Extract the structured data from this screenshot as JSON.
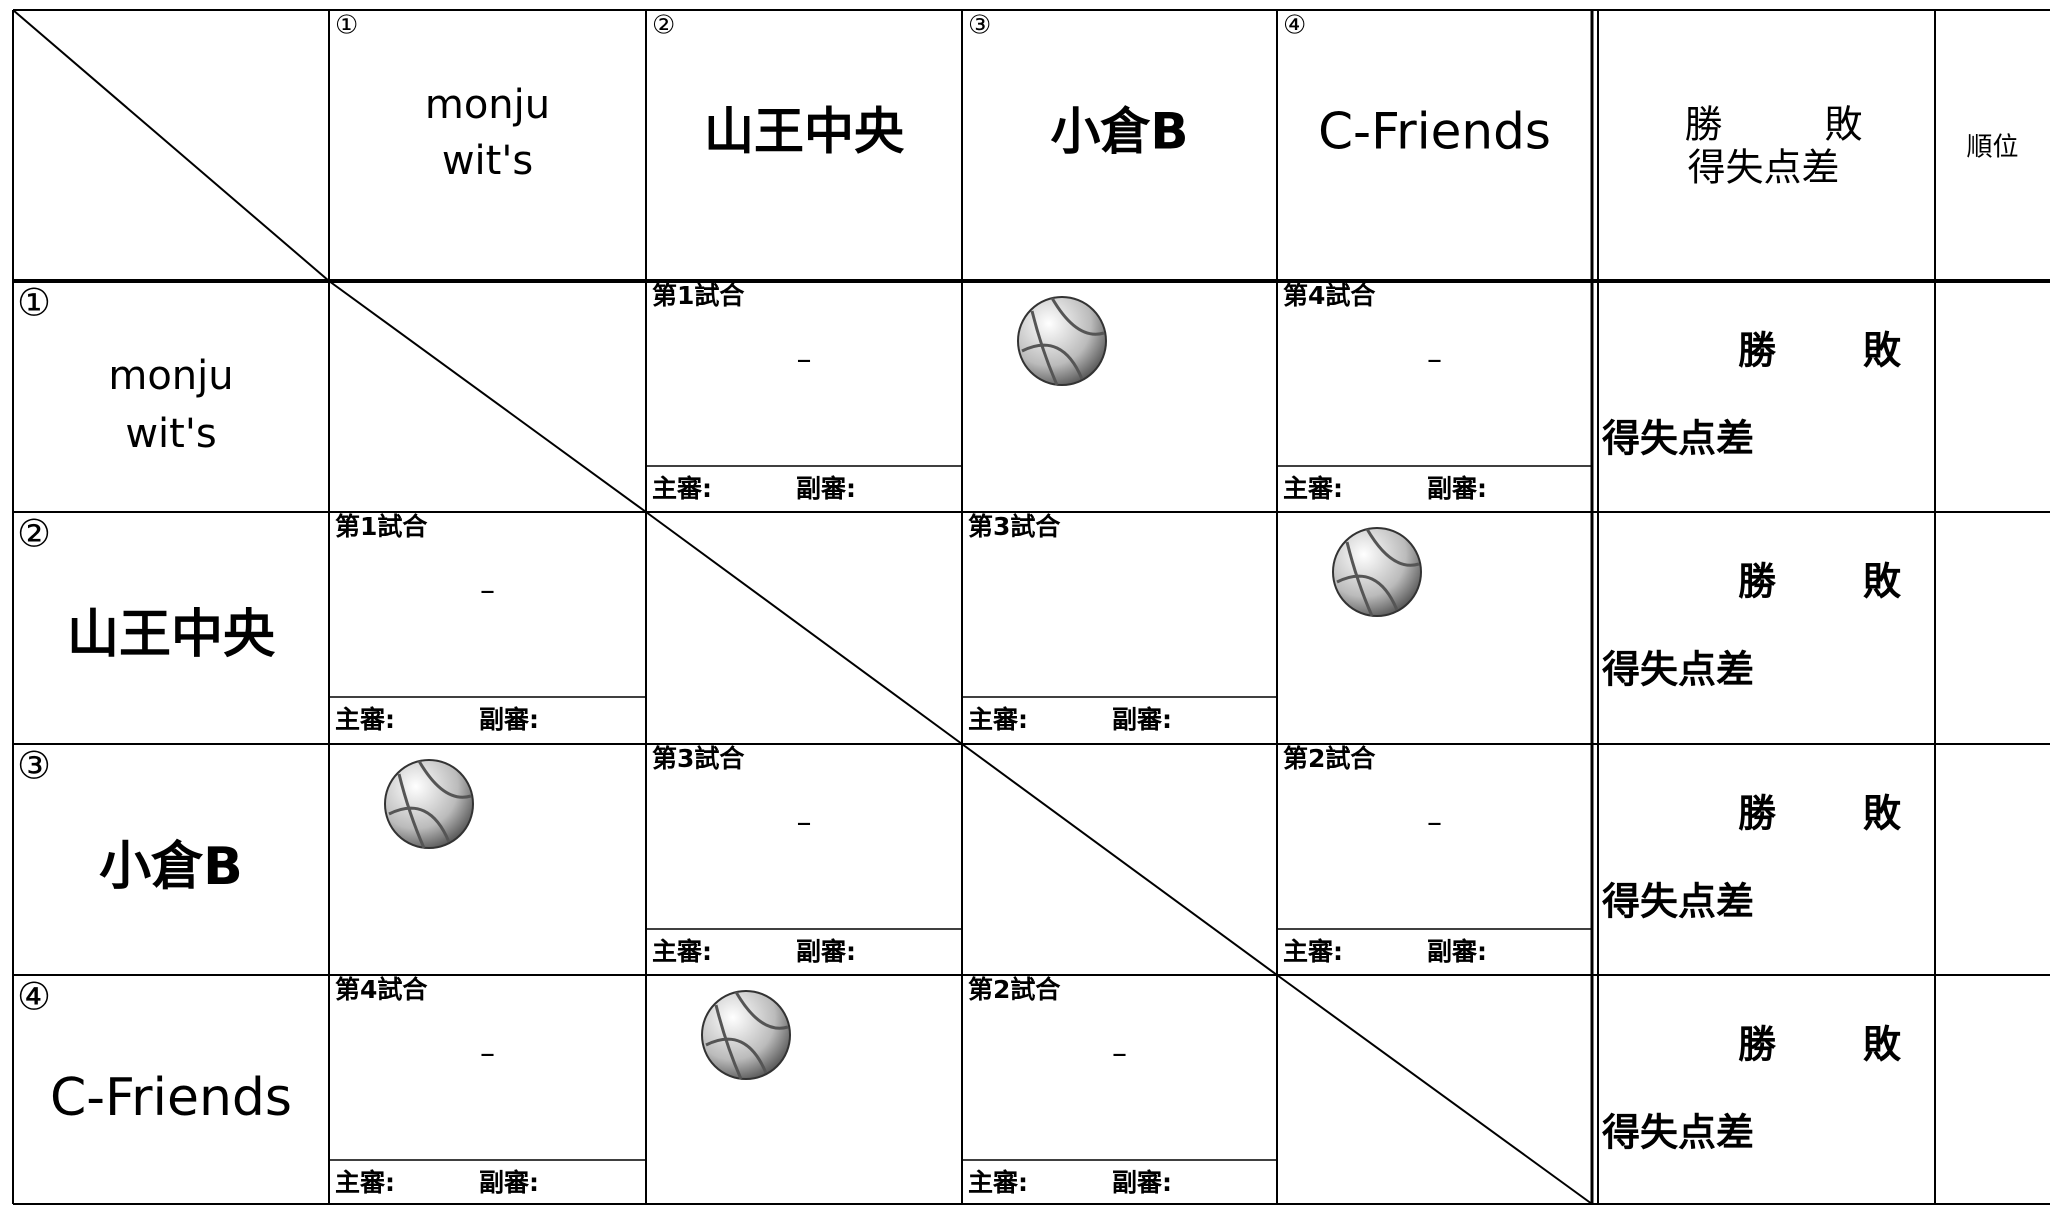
{
  "header": {
    "columns": [
      {
        "number": "①",
        "name": [
          "monju",
          "wit's"
        ]
      },
      {
        "number": "②",
        "name": [
          "山王中央"
        ]
      },
      {
        "number": "③",
        "name": [
          "小倉B"
        ]
      },
      {
        "number": "④",
        "name": [
          "C-Friends"
        ]
      }
    ],
    "result": {
      "win": "勝",
      "loss": "敗",
      "diff": "得失点差"
    },
    "rank": "順位"
  },
  "rows": [
    {
      "number": "①",
      "name": [
        "monju",
        "wit's"
      ],
      "cells": [
        {
          "type": "diagonal"
        },
        {
          "type": "match",
          "match": "第1試合",
          "score": "–",
          "referee": "主審:",
          "assistant": "副審:"
        },
        {
          "type": "ball"
        },
        {
          "type": "match",
          "match": "第4試合",
          "score": "–",
          "referee": "主審:",
          "assistant": "副審:"
        }
      ],
      "result": {
        "win": "勝",
        "loss": "敗",
        "diff": "得失点差"
      }
    },
    {
      "number": "②",
      "name": [
        "山王中央"
      ],
      "cells": [
        {
          "type": "match",
          "match": "第1試合",
          "score": "–",
          "referee": "主審:",
          "assistant": "副審:"
        },
        {
          "type": "diagonal"
        },
        {
          "type": "match",
          "match": "第3試合",
          "referee": "主審:",
          "assistant": "副審:"
        },
        {
          "type": "ball"
        }
      ],
      "result": {
        "win": "勝",
        "loss": "敗",
        "diff": "得失点差"
      }
    },
    {
      "number": "③",
      "name": [
        "小倉B"
      ],
      "cells": [
        {
          "type": "ball"
        },
        {
          "type": "match",
          "match": "第3試合",
          "score": "–",
          "referee": "主審:",
          "assistant": "副審:"
        },
        {
          "type": "diagonal"
        },
        {
          "type": "match",
          "match": "第2試合",
          "score": "–",
          "referee": "主審:",
          "assistant": "副審:"
        }
      ],
      "result": {
        "win": "勝",
        "loss": "敗",
        "diff": "得失点差"
      }
    },
    {
      "number": "④",
      "name": [
        "C-Friends"
      ],
      "cells": [
        {
          "type": "match",
          "match": "第4試合",
          "score": "–",
          "referee": "主審:",
          "assistant": "副審:"
        },
        {
          "type": "ball"
        },
        {
          "type": "match",
          "match": "第2試合",
          "score": "–",
          "referee": "主審:",
          "assistant": "副審:"
        },
        {
          "type": "diagonal"
        }
      ],
      "result": {
        "win": "勝",
        "loss": "敗",
        "diff": "得失点差"
      }
    }
  ]
}
